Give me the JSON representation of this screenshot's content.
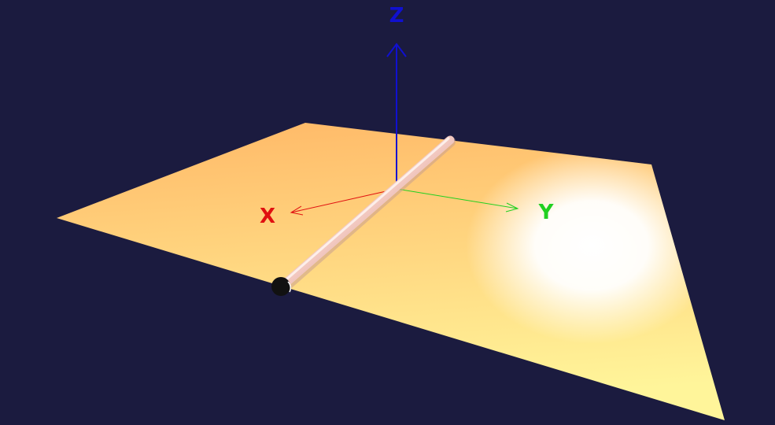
{
  "scene": {
    "background_color": "#1b1b3f",
    "plane": {
      "color_far": "#ffb867",
      "color_near": "#fff59a",
      "highlight_color": "#ffffff"
    },
    "axes": {
      "x": {
        "label": "X",
        "color": "#e01010"
      },
      "y": {
        "label": "Y",
        "color": "#20d020"
      },
      "z": {
        "label": "Z",
        "color": "#1010d0"
      }
    },
    "rod": {
      "color": "#f2c8c0",
      "cap_color": "#111111"
    }
  }
}
